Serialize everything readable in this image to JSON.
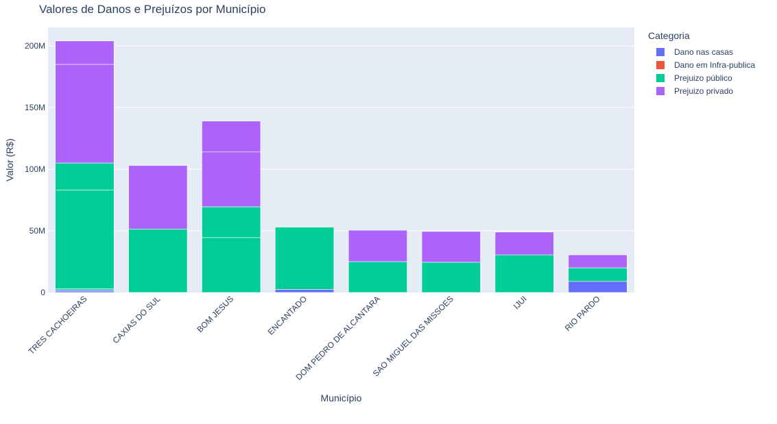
{
  "chart_data": {
    "type": "bar",
    "barmode": "stack",
    "title": "Valores de Danos e Prejuízos por Município",
    "xlabel": "Município",
    "ylabel": "Valor (R$)",
    "ylim": [
      0,
      215000000
    ],
    "yticks": [
      0,
      50000000,
      100000000,
      150000000,
      200000000
    ],
    "ytick_labels": [
      "0",
      "50M",
      "100M",
      "150M",
      "200M"
    ],
    "grid": true,
    "legend_title": "Categoria",
    "legend_position": "top-right",
    "categories": [
      "TRES CACHOEIRAS",
      "CAXIAS DO SUL",
      "BOM JESUS",
      "ENCANTADO",
      "DOM PEDRO DE ALCANTARA",
      "SAO MIGUEL DAS MISSOES",
      "IJUI",
      "RIO PARDO"
    ],
    "series": [
      {
        "name": "Dano nas casas",
        "color": "#636efa",
        "segments": [
          [
            1000000,
            1000000
          ],
          [
            0
          ],
          [
            0
          ],
          [
            2500000
          ],
          [
            0
          ],
          [
            0
          ],
          [
            0
          ],
          [
            9000000
          ]
        ]
      },
      {
        "name": "Dano em Infra-publica",
        "color": "#ef553b",
        "segments": [
          [
            0
          ],
          [
            0
          ],
          [
            0
          ],
          [
            0
          ],
          [
            0
          ],
          [
            0
          ],
          [
            0
          ],
          [
            0
          ]
        ]
      },
      {
        "name": "Prejuizo público",
        "color": "#00cc96",
        "segments": [
          [
            1000000,
            80000000,
            22000000
          ],
          [
            51500000
          ],
          [
            44500000,
            25000000
          ],
          [
            50500000
          ],
          [
            25000000
          ],
          [
            24500000
          ],
          [
            30500000
          ],
          [
            11000000
          ]
        ]
      },
      {
        "name": "Prejuizo privado",
        "color": "#ab63fa",
        "segments": [
          [
            80000000,
            19000000
          ],
          [
            51500000
          ],
          [
            44500000,
            25000000
          ],
          [
            0
          ],
          [
            25500000
          ],
          [
            25000000
          ],
          [
            18500000
          ],
          [
            10500000
          ]
        ]
      }
    ]
  }
}
